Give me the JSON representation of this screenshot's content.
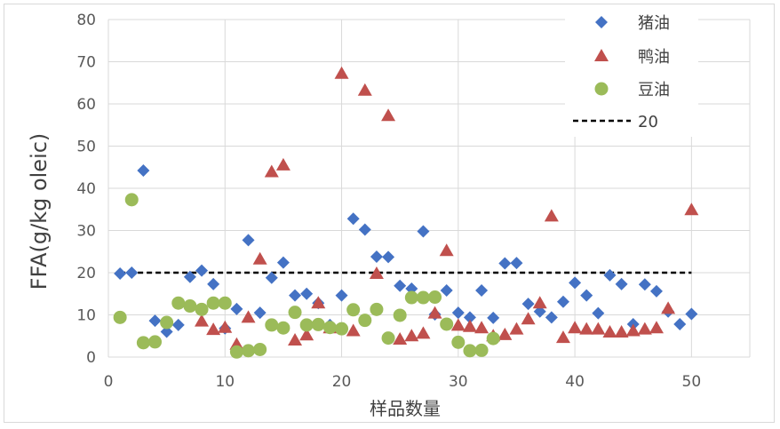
{
  "chart_data": {
    "type": "scatter",
    "title": "",
    "xlabel": "样品数量",
    "ylabel": "FFA(g/kg oleic)",
    "xlim": [
      0,
      55
    ],
    "ylim": [
      0,
      80
    ],
    "xticks": [
      0,
      10,
      20,
      30,
      40,
      50
    ],
    "yticks": [
      0,
      10,
      20,
      30,
      40,
      50,
      60,
      70,
      80
    ],
    "grid": "vertical and horizontal",
    "legend_position": "top-right",
    "series": [
      {
        "name": "猪油",
        "marker": "diamond",
        "color": "#4472C4",
        "points": [
          [
            1,
            19.8
          ],
          [
            2,
            20
          ],
          [
            3,
            44.2
          ],
          [
            4,
            8.6
          ],
          [
            5,
            6
          ],
          [
            6,
            7.6
          ],
          [
            7,
            19
          ],
          [
            8,
            20.5
          ],
          [
            9,
            17.3
          ],
          [
            10,
            6.8
          ],
          [
            11,
            11.4
          ],
          [
            12,
            27.7
          ],
          [
            13,
            10.5
          ],
          [
            14,
            18.8
          ],
          [
            15,
            22.4
          ],
          [
            16,
            14.6
          ],
          [
            17,
            15
          ],
          [
            18,
            12.8
          ],
          [
            19,
            7.6
          ],
          [
            20,
            14.6
          ],
          [
            21,
            32.8
          ],
          [
            22,
            30.2
          ],
          [
            23,
            23.8
          ],
          [
            24,
            23.7
          ],
          [
            25,
            16.9
          ],
          [
            26,
            16.2
          ],
          [
            27,
            29.8
          ],
          [
            28,
            10.1
          ],
          [
            29,
            15.8
          ],
          [
            30,
            10.5
          ],
          [
            31,
            9.4
          ],
          [
            32,
            15.8
          ],
          [
            33,
            9.3
          ],
          [
            34,
            22.2
          ],
          [
            35,
            22.3
          ],
          [
            36,
            12.6
          ],
          [
            37,
            10.8
          ],
          [
            38,
            9.4
          ],
          [
            39,
            13.1
          ],
          [
            40,
            17.6
          ],
          [
            41,
            14.6
          ],
          [
            42,
            10.4
          ],
          [
            43,
            19.4
          ],
          [
            44,
            17.3
          ],
          [
            45,
            7.8
          ],
          [
            46,
            17.2
          ],
          [
            47,
            15.6
          ],
          [
            48,
            10.8
          ],
          [
            49,
            7.8
          ],
          [
            50,
            10.2
          ]
        ]
      },
      {
        "name": "鸭油",
        "marker": "triangle",
        "color": "#C0504D",
        "points": [
          [
            8,
            8.5
          ],
          [
            9,
            6.5
          ],
          [
            10,
            7
          ],
          [
            11,
            3
          ],
          [
            12,
            9.4
          ],
          [
            13,
            23.2
          ],
          [
            14,
            43.9
          ],
          [
            15,
            45.5
          ],
          [
            16,
            4
          ],
          [
            17,
            5.2
          ],
          [
            18,
            12.8
          ],
          [
            19,
            6.9
          ],
          [
            20,
            67.2
          ],
          [
            21,
            6.2
          ],
          [
            22,
            63.2
          ],
          [
            23,
            19.8
          ],
          [
            24,
            57.2
          ],
          [
            25,
            4.2
          ],
          [
            26,
            5
          ],
          [
            27,
            5.6
          ],
          [
            28,
            10.4
          ],
          [
            29,
            25.2
          ],
          [
            30,
            7.5
          ],
          [
            31,
            7.2
          ],
          [
            32,
            6.9
          ],
          [
            33,
            5
          ],
          [
            34,
            5.3
          ],
          [
            35,
            6.6
          ],
          [
            36,
            9
          ],
          [
            37,
            12.8
          ],
          [
            38,
            33.4
          ],
          [
            39,
            4.6
          ],
          [
            40,
            6.9
          ],
          [
            41,
            6.6
          ],
          [
            42,
            6.6
          ],
          [
            43,
            5.9
          ],
          [
            44,
            5.9
          ],
          [
            45,
            6.2
          ],
          [
            46,
            6.6
          ],
          [
            47,
            6.9
          ],
          [
            48,
            11.5
          ],
          [
            49,
            53.8
          ],
          [
            50,
            34.9
          ]
        ]
      },
      {
        "name": "豆油",
        "marker": "circle",
        "color": "#9BBB59",
        "points": [
          [
            1,
            9.4
          ],
          [
            2,
            37.3
          ],
          [
            3,
            3.4
          ],
          [
            4,
            3.6
          ],
          [
            5,
            8.2
          ],
          [
            6,
            12.8
          ],
          [
            7,
            12.1
          ],
          [
            8,
            11.3
          ],
          [
            9,
            12.8
          ],
          [
            10,
            12.8
          ],
          [
            11,
            1.2
          ],
          [
            12,
            1.5
          ],
          [
            13,
            1.8
          ],
          [
            14,
            7.6
          ],
          [
            15,
            6.9
          ],
          [
            16,
            10.6
          ],
          [
            17,
            7.6
          ],
          [
            18,
            7.7
          ],
          [
            19,
            7
          ],
          [
            20,
            6.7
          ],
          [
            21,
            11.2
          ],
          [
            22,
            8.7
          ],
          [
            23,
            11.3
          ],
          [
            24,
            4.5
          ],
          [
            25,
            9.9
          ],
          [
            26,
            14.1
          ],
          [
            27,
            14.1
          ],
          [
            28,
            14.2
          ],
          [
            29,
            7.8
          ],
          [
            30,
            3.5
          ],
          [
            31,
            1.5
          ],
          [
            32,
            1.6
          ],
          [
            33,
            4.4
          ]
        ]
      },
      {
        "name": "20",
        "type": "reference-line",
        "style": "dashed",
        "color": "#000000",
        "y": 20,
        "x_range": [
          1,
          50
        ]
      }
    ]
  }
}
